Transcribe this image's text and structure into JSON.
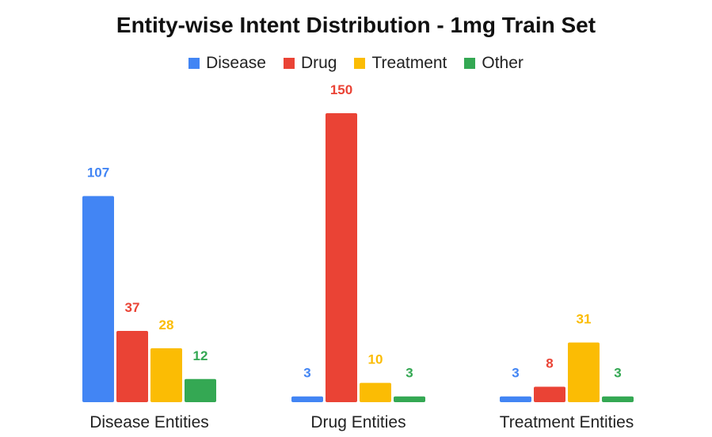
{
  "chart_data": {
    "type": "bar",
    "title": "Entity-wise Intent Distribution - 1mg Train Set",
    "xlabel": "",
    "ylabel": "",
    "categories": [
      "Disease Entities",
      "Drug Entities",
      "Treatment Entities"
    ],
    "series": [
      {
        "name": "Disease",
        "color": "#4285F4",
        "values": [
          107,
          3,
          3
        ]
      },
      {
        "name": "Drug",
        "color": "#EA4335",
        "values": [
          37,
          150,
          8
        ]
      },
      {
        "name": "Treatment",
        "color": "#FBBC04",
        "values": [
          28,
          10,
          31
        ]
      },
      {
        "name": "Other",
        "color": "#34A853",
        "values": [
          12,
          3,
          3
        ]
      }
    ],
    "ylim": [
      0,
      150
    ],
    "grid": false,
    "legend_position": "top",
    "data_labels": true
  }
}
